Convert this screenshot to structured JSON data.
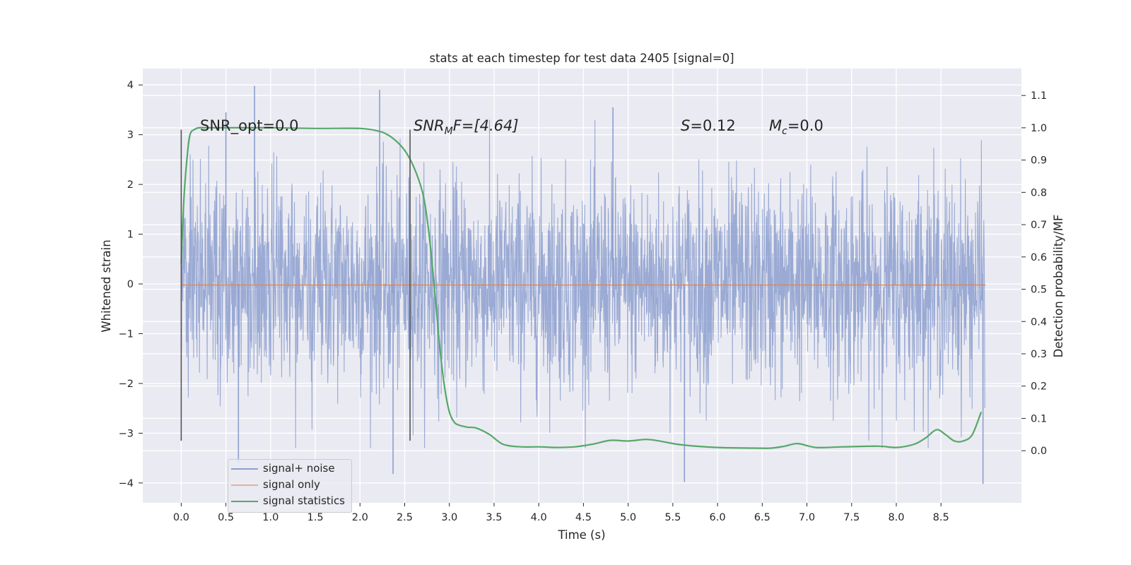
{
  "chart_data": {
    "type": "line",
    "title": "stats at each timestep for test data 2405 [signal=0]",
    "xlabel": "Time (s)",
    "ylabel": "Whitened strain",
    "y2label": "Detection probability/MF",
    "xlim": [
      -0.43,
      9.4
    ],
    "ylim": [
      -4.4,
      4.33
    ],
    "y2lim": [
      -0.1615,
      1.1835
    ],
    "xticks": [
      "0.0",
      "0.5",
      "1.0",
      "1.5",
      "2.0",
      "2.5",
      "3.0",
      "3.5",
      "4.0",
      "4.5",
      "5.0",
      "5.5",
      "6.0",
      "6.5",
      "7.0",
      "7.5",
      "8.0",
      "8.5"
    ],
    "yticks": [
      "4",
      "3",
      "2",
      "1",
      "0",
      "−1",
      "−2",
      "−3",
      "−4"
    ],
    "y2ticks": [
      "1.1",
      "1.0",
      "0.9",
      "0.8",
      "0.7",
      "0.6",
      "0.5",
      "0.4",
      "0.3",
      "0.2",
      "0.1",
      "0.0"
    ],
    "grid": true,
    "legend_position": "lower-left",
    "annotations": {
      "snr_opt": "SNR_opt=0.0",
      "snr_mf": "SNR",
      "snr_mf_sub": "M",
      "snr_mf_value": "F=[4.64]",
      "s_label": "S",
      "s_value": "=0.12",
      "mc_label": "M",
      "mc_sub": "c",
      "mc_value": "=0.0"
    },
    "vlines": [
      {
        "x": 0.0,
        "ymin": -3.15,
        "ymax": 3.1
      },
      {
        "x": 2.56,
        "ymin": -3.15,
        "ymax": 3.1
      }
    ],
    "series": [
      {
        "name": "signal+ noise",
        "color": "#8c9fcf",
        "axis": "left",
        "description": "noisy whitened strain, roughly between -2.5 and 2.5 with spikes",
        "x_range": [
          0.0,
          8.99
        ],
        "peak_values": [
          {
            "x": 0.82,
            "y": 3.98
          },
          {
            "x": 2.22,
            "y": 3.9
          },
          {
            "x": 4.83,
            "y": 3.55
          },
          {
            "x": 0.5,
            "y": 3.45
          },
          {
            "x": 5.63,
            "y": -3.98
          },
          {
            "x": 8.97,
            "y": -4.02
          },
          {
            "x": 2.37,
            "y": -3.82
          },
          {
            "x": 0.64,
            "y": -3.6
          }
        ]
      },
      {
        "name": "signal only",
        "color": "#dd8452",
        "axis": "left",
        "x": [
          0.0,
          9.0
        ],
        "y": [
          -0.02,
          -0.02
        ]
      },
      {
        "name": "signal statistics",
        "color": "#55a868",
        "axis": "right",
        "x": [
          0.0,
          0.03,
          0.07,
          0.1,
          0.15,
          0.2,
          0.3,
          0.5,
          1.0,
          1.5,
          2.0,
          2.2,
          2.3,
          2.4,
          2.5,
          2.6,
          2.7,
          2.75,
          2.8,
          2.85,
          2.9,
          2.95,
          3.0,
          3.05,
          3.1,
          3.2,
          3.3,
          3.45,
          3.6,
          3.8,
          4.0,
          4.2,
          4.4,
          4.6,
          4.8,
          5.0,
          5.2,
          5.35,
          5.6,
          6.0,
          6.4,
          6.6,
          6.75,
          6.9,
          7.1,
          7.4,
          7.8,
          8.0,
          8.2,
          8.33,
          8.45,
          8.55,
          8.65,
          8.75,
          8.85,
          8.95
        ],
        "y": [
          0.58,
          0.78,
          0.92,
          0.98,
          0.995,
          1.0,
          1.0,
          1.0,
          1.0,
          0.998,
          0.998,
          0.99,
          0.98,
          0.96,
          0.93,
          0.88,
          0.8,
          0.72,
          0.6,
          0.45,
          0.3,
          0.19,
          0.12,
          0.09,
          0.08,
          0.073,
          0.07,
          0.05,
          0.02,
          0.012,
          0.012,
          0.01,
          0.012,
          0.02,
          0.032,
          0.03,
          0.035,
          0.03,
          0.018,
          0.01,
          0.008,
          0.008,
          0.014,
          0.022,
          0.01,
          0.012,
          0.014,
          0.01,
          0.02,
          0.04,
          0.065,
          0.05,
          0.03,
          0.03,
          0.05,
          0.12
        ]
      }
    ]
  }
}
